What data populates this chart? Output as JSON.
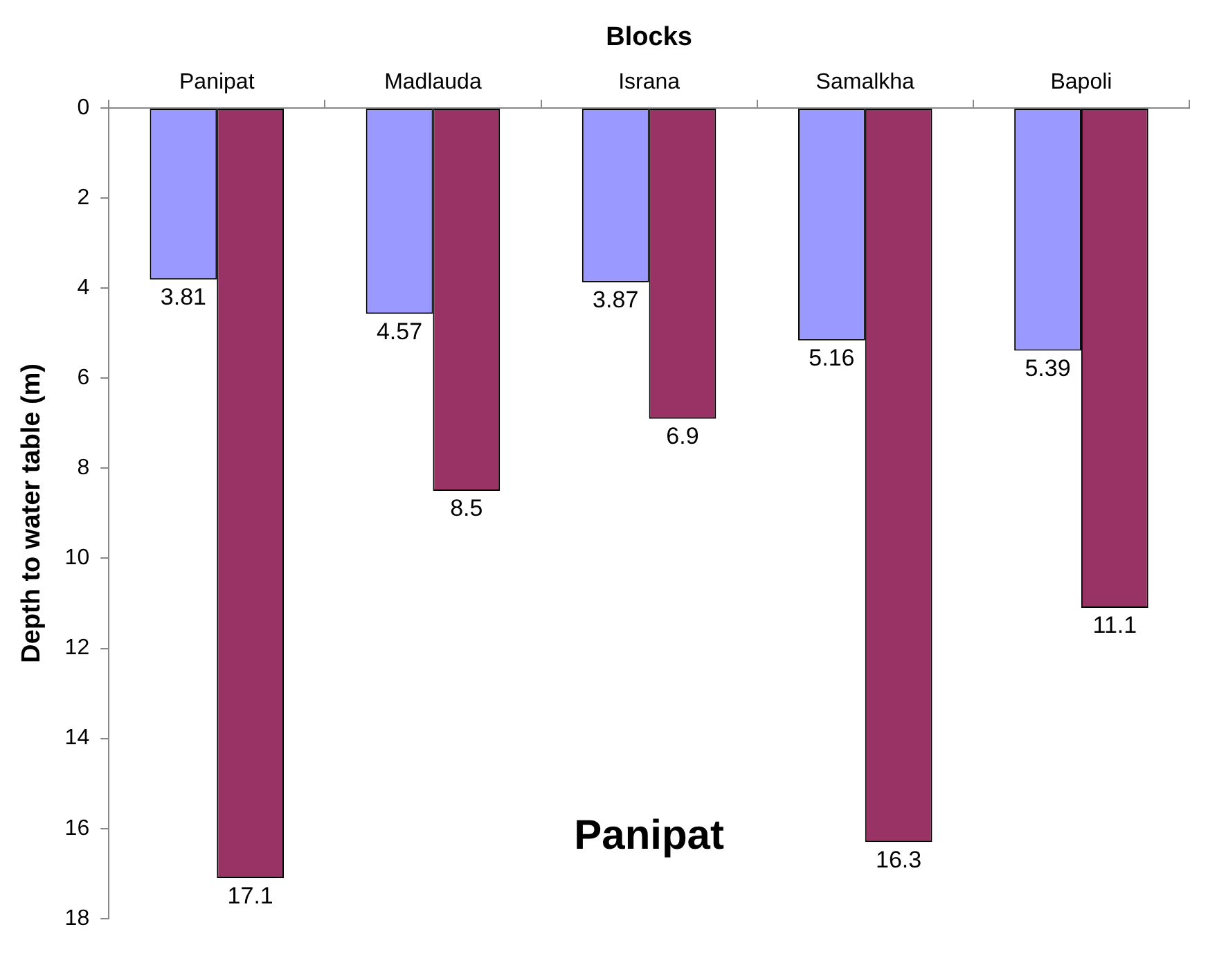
{
  "chart_data": {
    "type": "bar",
    "xlabel": "Blocks",
    "ylabel": "Depth to water table (m)",
    "categories": [
      "Panipat",
      "Madlauda",
      "Israna",
      "Samalkha",
      "Bapoli"
    ],
    "series": [
      {
        "color": "#9999ff",
        "values": [
          3.81,
          4.57,
          3.87,
          5.16,
          5.39
        ]
      },
      {
        "color": "#993366",
        "values": [
          17.1,
          8.5,
          6.9,
          16.3,
          11.1
        ]
      }
    ],
    "ylim": [
      18,
      0
    ],
    "yticks": [
      0,
      2,
      4,
      6,
      8,
      10,
      12,
      14,
      16,
      18
    ],
    "data_labels": true,
    "annotations": [
      "Panipat"
    ]
  }
}
